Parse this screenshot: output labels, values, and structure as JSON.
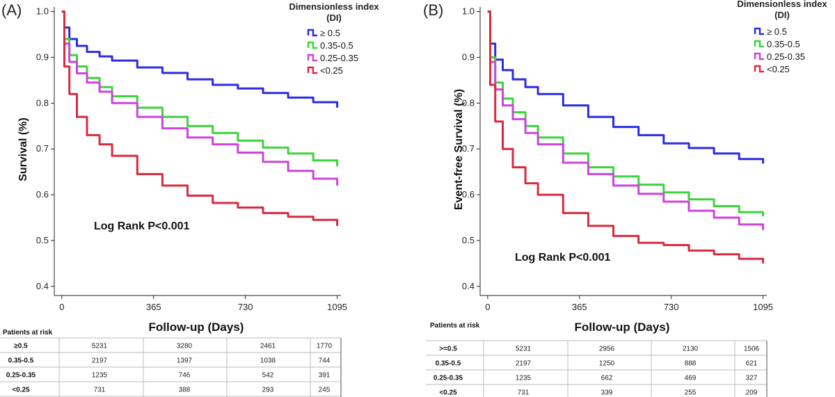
{
  "chart_data": [
    {
      "type": "line",
      "panel_label": "(A)",
      "xlabel": "Follow-up (Days)",
      "ylabel": "Survival (%)",
      "xticks": [
        0,
        365,
        730,
        1095
      ],
      "yticks": [
        0.4,
        0.5,
        0.6,
        0.7,
        0.8,
        0.9,
        1.0
      ],
      "ytick_labels": [
        "0.4",
        "0.5",
        "0.6",
        "0.7",
        "0.8",
        "0.9",
        "1.0"
      ],
      "xlim": [
        -30,
        1110
      ],
      "ylim": [
        0.38,
        1.01
      ],
      "legend_title_line1": "Dimensionless index",
      "legend_title_line2": "(DI)",
      "annotation": "Log Rank P<0.001",
      "series": [
        {
          "name": "≥ 0.5",
          "color": "#2b2be6",
          "x": [
            0,
            10,
            30,
            60,
            100,
            150,
            200,
            300,
            400,
            500,
            600,
            700,
            800,
            900,
            1000,
            1095
          ],
          "y": [
            1.0,
            0.965,
            0.94,
            0.925,
            0.912,
            0.902,
            0.893,
            0.878,
            0.866,
            0.852,
            0.84,
            0.832,
            0.822,
            0.812,
            0.802,
            0.79
          ]
        },
        {
          "name": "0.35-0.5",
          "color": "#3bd43b",
          "x": [
            0,
            10,
            30,
            60,
            100,
            150,
            200,
            300,
            400,
            500,
            600,
            700,
            800,
            900,
            1000,
            1095
          ],
          "y": [
            1.0,
            0.94,
            0.905,
            0.88,
            0.855,
            0.835,
            0.815,
            0.79,
            0.77,
            0.75,
            0.735,
            0.718,
            0.703,
            0.69,
            0.675,
            0.662
          ]
        },
        {
          "name": "0.25-0.35",
          "color": "#cc44dd",
          "x": [
            0,
            10,
            30,
            60,
            100,
            150,
            200,
            300,
            400,
            500,
            600,
            700,
            800,
            900,
            1000,
            1095
          ],
          "y": [
            1.0,
            0.93,
            0.89,
            0.865,
            0.845,
            0.825,
            0.8,
            0.77,
            0.745,
            0.725,
            0.71,
            0.692,
            0.672,
            0.652,
            0.635,
            0.62
          ]
        },
        {
          "name": "<0.25",
          "color": "#d92a3e",
          "x": [
            0,
            10,
            30,
            60,
            100,
            150,
            200,
            300,
            400,
            500,
            600,
            700,
            800,
            900,
            1000,
            1095
          ],
          "y": [
            1.0,
            0.88,
            0.82,
            0.77,
            0.73,
            0.71,
            0.685,
            0.645,
            0.62,
            0.598,
            0.582,
            0.572,
            0.56,
            0.552,
            0.545,
            0.532
          ]
        }
      ],
      "risk_table": {
        "title": "Patients at risk",
        "rows": [
          {
            "label": "≥0.5",
            "values": [
              5231,
              3280,
              2461,
              1770
            ]
          },
          {
            "label": "0.35-0.5",
            "values": [
              2197,
              1397,
              1038,
              744
            ]
          },
          {
            "label": "0.25-0.35",
            "values": [
              1235,
              746,
              542,
              391
            ]
          },
          {
            "label": "<0.25",
            "values": [
              731,
              388,
              293,
              245
            ]
          }
        ]
      }
    },
    {
      "type": "line",
      "panel_label": "(B)",
      "xlabel": "Follow-up (Days)",
      "ylabel": "Event-free Survival (%)",
      "xticks": [
        0,
        365,
        730,
        1095
      ],
      "yticks": [
        0.4,
        0.5,
        0.6,
        0.7,
        0.8,
        0.9,
        1.0
      ],
      "ytick_labels": [
        "0.4",
        "0.5",
        "0.6",
        "0.7",
        "0.8",
        "0.9",
        "1.0"
      ],
      "xlim": [
        -30,
        1110
      ],
      "ylim": [
        0.38,
        1.01
      ],
      "legend_title_line1": "Dimensionless index",
      "legend_title_line2": "(DI)",
      "annotation": "Log Rank P<0.001",
      "series": [
        {
          "name": "≥ 0.5",
          "color": "#2b2be6",
          "x": [
            0,
            10,
            30,
            60,
            100,
            150,
            200,
            300,
            400,
            500,
            600,
            700,
            800,
            900,
            1000,
            1095
          ],
          "y": [
            1.0,
            0.93,
            0.895,
            0.872,
            0.852,
            0.835,
            0.82,
            0.795,
            0.77,
            0.748,
            0.73,
            0.712,
            0.702,
            0.69,
            0.678,
            0.668
          ]
        },
        {
          "name": "0.35-0.5",
          "color": "#3bd43b",
          "x": [
            0,
            10,
            30,
            60,
            100,
            150,
            200,
            300,
            400,
            500,
            600,
            700,
            800,
            900,
            1000,
            1095
          ],
          "y": [
            1.0,
            0.9,
            0.845,
            0.81,
            0.78,
            0.75,
            0.725,
            0.69,
            0.66,
            0.64,
            0.622,
            0.605,
            0.59,
            0.575,
            0.562,
            0.553
          ]
        },
        {
          "name": "0.25-0.35",
          "color": "#cc44dd",
          "x": [
            0,
            10,
            30,
            60,
            100,
            150,
            200,
            300,
            400,
            500,
            600,
            700,
            800,
            900,
            1000,
            1095
          ],
          "y": [
            1.0,
            0.89,
            0.83,
            0.795,
            0.765,
            0.735,
            0.71,
            0.67,
            0.645,
            0.62,
            0.602,
            0.585,
            0.565,
            0.55,
            0.535,
            0.523
          ]
        },
        {
          "name": "<0.25",
          "color": "#d92a3e",
          "x": [
            0,
            10,
            30,
            60,
            100,
            150,
            200,
            300,
            400,
            500,
            600,
            700,
            800,
            900,
            1000,
            1095
          ],
          "y": [
            1.0,
            0.84,
            0.76,
            0.7,
            0.66,
            0.625,
            0.6,
            0.56,
            0.532,
            0.51,
            0.495,
            0.49,
            0.478,
            0.47,
            0.46,
            0.45
          ]
        }
      ],
      "risk_table": {
        "title": "Patients at risk",
        "rows": [
          {
            "label": ">=0.5",
            "values": [
              5231,
              2956,
              2130,
              1506
            ]
          },
          {
            "label": "0.35-0.5",
            "values": [
              2197,
              1250,
              888,
              621
            ]
          },
          {
            "label": "0.25-0.35",
            "values": [
              1235,
              662,
              469,
              327
            ]
          },
          {
            "label": "<0.25",
            "values": [
              731,
              339,
              255,
              209
            ]
          }
        ]
      }
    }
  ]
}
